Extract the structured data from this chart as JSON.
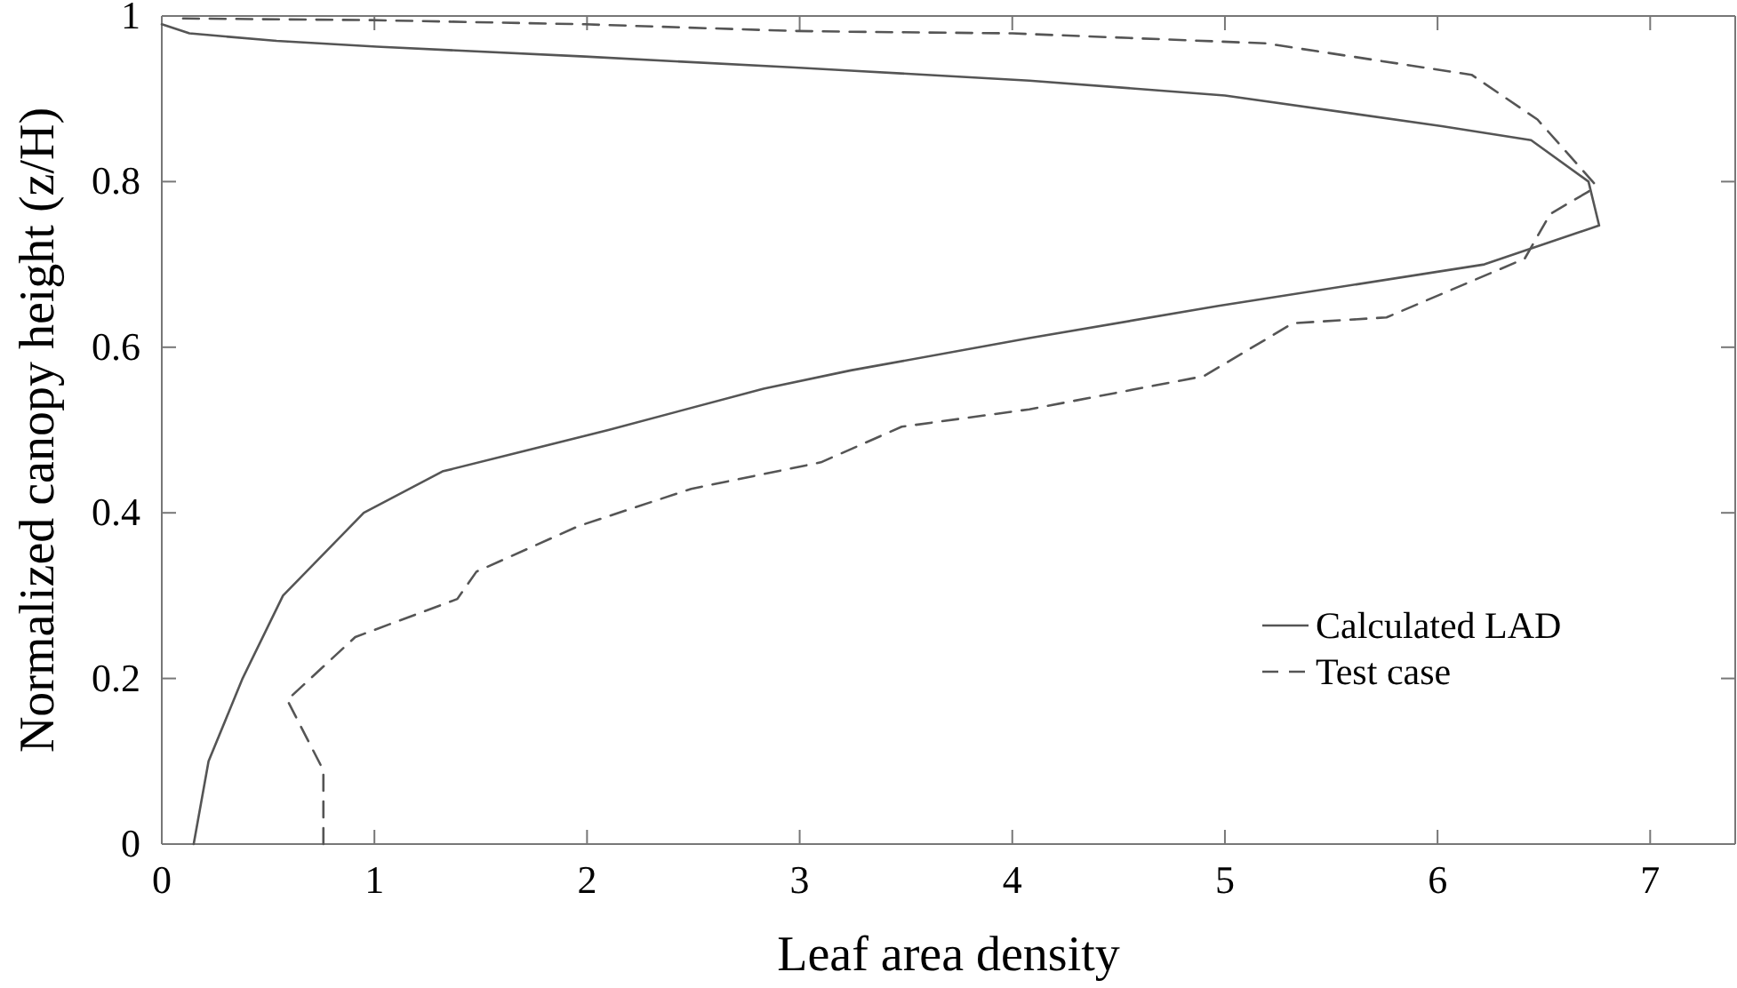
{
  "chart_data": {
    "type": "line",
    "xlabel": "Leaf area density",
    "ylabel": "Normalized canopy height (z/H)",
    "xlim": [
      0,
      7.4
    ],
    "ylim": [
      0,
      1
    ],
    "xticks": [
      0,
      1,
      2,
      3,
      4,
      5,
      6,
      7
    ],
    "yticks": [
      0,
      0.2,
      0.4,
      0.6,
      0.8,
      1
    ],
    "grid": false,
    "legend": "bottom right",
    "series": [
      {
        "name": "Calculated LAD",
        "color": "#555555",
        "line_style": "solid",
        "x": [
          0.15,
          0.22,
          0.38,
          0.57,
          0.95,
          1.32,
          2.1,
          2.83,
          3.24,
          4.08,
          4.97,
          6.22,
          6.76,
          6.71,
          6.44,
          6.02,
          5.0,
          4.08,
          3.24,
          2.96,
          1.99,
          1.01,
          0.54,
          0.13,
          0
        ],
        "values": [
          0,
          0.1,
          0.2,
          0.3,
          0.4,
          0.45,
          0.5,
          0.55,
          0.572,
          0.611,
          0.65,
          0.7,
          0.747,
          0.8,
          0.85,
          0.867,
          0.904,
          0.922,
          0.934,
          0.938,
          0.951,
          0.963,
          0.97,
          0.979,
          0.99
        ]
      },
      {
        "name": "Test case",
        "color": "#555555",
        "line_style": "dashed",
        "x": [
          0.76,
          0.76,
          0.59,
          0.91,
          1.39,
          1.48,
          1.96,
          2.49,
          3.1,
          3.48,
          4.08,
          4.9,
          5.32,
          5.76,
          6.41,
          6.53,
          6.71,
          6.74,
          6.47,
          6.16,
          5.19,
          4.0,
          3.24,
          2.96,
          1.99,
          0.99,
          0.1
        ],
        "values": [
          0,
          0.089,
          0.174,
          0.25,
          0.296,
          0.329,
          0.384,
          0.429,
          0.461,
          0.504,
          0.525,
          0.565,
          0.629,
          0.636,
          0.707,
          0.761,
          0.788,
          0.797,
          0.875,
          0.929,
          0.967,
          0.979,
          0.981,
          0.982,
          0.99,
          0.995,
          0.997
        ]
      }
    ]
  }
}
